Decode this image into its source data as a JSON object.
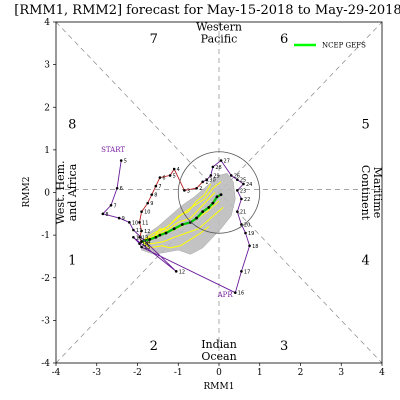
{
  "chart_data": {
    "type": "line",
    "title": "[RMM1, RMM2] forecast for May-15-2018 to May-29-2018",
    "xlabel": "RMM1",
    "ylabel": "RMM2",
    "xlim": [
      -4,
      4
    ],
    "ylim": [
      -4,
      4
    ],
    "xticks": [
      "-4",
      "-3",
      "-2",
      "-1",
      "0",
      "1",
      "2",
      "3",
      "4"
    ],
    "yticks": [
      "-4",
      "-3",
      "-2",
      "-1",
      "0",
      "1",
      "2",
      "3",
      "4"
    ],
    "phases": [
      {
        "label": "1",
        "x": -3.6,
        "y": -1.6
      },
      {
        "label": "2",
        "x": -1.6,
        "y": -3.6
      },
      {
        "label": "3",
        "x": 1.6,
        "y": -3.6
      },
      {
        "label": "4",
        "x": 3.6,
        "y": -1.6
      },
      {
        "label": "5",
        "x": 3.6,
        "y": 1.6
      },
      {
        "label": "6",
        "x": 1.6,
        "y": 3.6
      },
      {
        "label": "7",
        "x": -1.6,
        "y": 3.6
      },
      {
        "label": "8",
        "x": -3.6,
        "y": 1.6
      }
    ],
    "regions": [
      {
        "lines": [
          "Western",
          "Pacific"
        ],
        "x": 0,
        "y": 3.75,
        "rotate": 0
      },
      {
        "lines": [
          "Indian",
          "Ocean"
        ],
        "x": 0,
        "y": -3.7,
        "rotate": 0
      },
      {
        "lines": [
          "West. Hem.",
          "and Africa"
        ],
        "x": -3.75,
        "y": 0,
        "rotate": -90
      },
      {
        "lines": [
          "Maritime",
          "Continent"
        ],
        "x": 3.75,
        "y": 0,
        "rotate": 90
      }
    ],
    "annotations": [
      {
        "text": "START",
        "x": -2.6,
        "y": 0.95,
        "color": "#7b1fa2"
      },
      {
        "text": "APR",
        "x": 0.15,
        "y": -2.45,
        "color": "#7b1fa2"
      }
    ],
    "legend": {
      "position": "top-right",
      "entries": [
        {
          "name": "NCEP GEFS",
          "color": "#00ff00"
        }
      ]
    },
    "amplitude_circle_radius": 1,
    "observed": {
      "color": "#6a1b9a",
      "points": [
        {
          "day": "5",
          "x": -2.4,
          "y": 0.75
        },
        {
          "day": "6",
          "x": -2.5,
          "y": 0.1
        },
        {
          "day": "7",
          "x": -2.65,
          "y": -0.3
        },
        {
          "day": "8",
          "x": -2.85,
          "y": -0.5
        },
        {
          "day": "9",
          "x": -2.45,
          "y": -0.6
        },
        {
          "day": "10",
          "x": -2.2,
          "y": -0.7
        },
        {
          "day": "11",
          "x": -2.1,
          "y": -0.88
        },
        {
          "day": "12",
          "x": -1.05,
          "y": -1.85
        },
        {
          "day": "13",
          "x": -2.1,
          "y": -1.05
        },
        {
          "day": "14",
          "x": -1.95,
          "y": -1.2
        },
        {
          "day": "15",
          "x": -1.9,
          "y": -1.28
        },
        {
          "day": "16",
          "x": 0.4,
          "y": -2.35
        },
        {
          "day": "17",
          "x": 0.55,
          "y": -1.85
        },
        {
          "day": "18",
          "x": 0.75,
          "y": -1.25
        },
        {
          "day": "19",
          "x": 0.65,
          "y": -0.95
        },
        {
          "day": "20",
          "x": 0.55,
          "y": -0.75
        },
        {
          "day": "21",
          "x": 0.45,
          "y": -0.45
        },
        {
          "day": "22",
          "x": 0.55,
          "y": -0.15
        },
        {
          "day": "23",
          "x": 0.45,
          "y": 0.05
        },
        {
          "day": "24",
          "x": 0.6,
          "y": 0.2
        },
        {
          "day": "25",
          "x": 0.45,
          "y": 0.3
        },
        {
          "day": "26",
          "x": 0.3,
          "y": 0.4
        },
        {
          "day": "27",
          "x": 0.05,
          "y": 0.75
        },
        {
          "day": "28",
          "x": -0.15,
          "y": 0.6
        },
        {
          "day": "29",
          "x": -0.2,
          "y": 0.4
        },
        {
          "day": "30",
          "x": -0.3,
          "y": 0.3
        },
        {
          "day": "1",
          "x": -0.4,
          "y": 0.25
        },
        {
          "day": "2",
          "x": -0.55,
          "y": 0.1
        },
        {
          "day": "3",
          "x": -0.85,
          "y": 0.05
        },
        {
          "day": "4",
          "x": -1.1,
          "y": 0.55
        },
        {
          "day": "5",
          "x": -1.2,
          "y": 0.4
        },
        {
          "day": "6",
          "x": -1.45,
          "y": 0.35
        },
        {
          "day": "7",
          "x": -1.55,
          "y": 0.15
        },
        {
          "day": "8",
          "x": -1.65,
          "y": -0.05
        },
        {
          "day": "9",
          "x": -1.75,
          "y": -0.25
        },
        {
          "day": "10",
          "x": -1.9,
          "y": -0.45
        },
        {
          "day": "11",
          "x": -1.95,
          "y": -0.7
        },
        {
          "day": "12",
          "x": -1.9,
          "y": -0.9
        },
        {
          "day": "13",
          "x": -1.95,
          "y": -1.05
        },
        {
          "day": "14",
          "x": -1.9,
          "y": -1.15
        }
      ]
    },
    "forecast_mean": {
      "color": "#ff1493",
      "x": [
        -1.9,
        -1.7,
        -1.55,
        -1.45,
        -1.3,
        -1.1,
        -0.9,
        -0.7,
        -0.55,
        -0.4,
        -0.25,
        -0.15,
        -0.05,
        0.05
      ],
      "y": [
        -1.15,
        -1.1,
        -1.05,
        -1.0,
        -0.95,
        -0.85,
        -0.75,
        -0.7,
        -0.6,
        -0.45,
        -0.35,
        -0.25,
        -0.1,
        -0.05
      ]
    },
    "forecast_spread": {
      "color": "#bdbdbd",
      "polygon_x": [
        -1.9,
        -1.6,
        -1.3,
        -1.0,
        -0.7,
        -0.4,
        -0.2,
        0.05,
        0.3,
        0.4,
        0.35,
        0.2,
        0.0,
        -0.3,
        -0.6,
        -0.9,
        -1.2,
        -1.5,
        -1.8
      ],
      "polygon_y": [
        -1.35,
        -1.45,
        -1.4,
        -1.35,
        -1.45,
        -1.3,
        -1.1,
        -0.85,
        -0.55,
        -0.15,
        0.25,
        0.45,
        0.4,
        0.15,
        -0.1,
        -0.3,
        -0.55,
        -0.8,
        -1.0
      ]
    },
    "ensemble": {
      "color": "#ffff00",
      "members": [
        {
          "x": [
            -1.9,
            -1.6,
            -1.3,
            -1.0,
            -0.7,
            -0.5,
            -0.3,
            -0.1
          ],
          "y": [
            -1.15,
            -1.05,
            -0.9,
            -0.7,
            -0.6,
            -0.4,
            -0.2,
            0.0
          ]
        },
        {
          "x": [
            -1.9,
            -1.65,
            -1.35,
            -1.1,
            -0.8,
            -0.5,
            -0.2,
            0.1
          ],
          "y": [
            -1.15,
            -1.2,
            -1.15,
            -1.05,
            -0.95,
            -0.85,
            -0.6,
            -0.35
          ]
        },
        {
          "x": [
            -1.9,
            -1.55,
            -1.2,
            -0.9,
            -0.6,
            -0.35,
            -0.15,
            0.05
          ],
          "y": [
            -1.15,
            -1.0,
            -0.75,
            -0.5,
            -0.3,
            -0.15,
            0.1,
            0.25
          ]
        },
        {
          "x": [
            -1.9,
            -1.7,
            -1.4,
            -1.2,
            -0.95,
            -0.7,
            -0.45,
            -0.25
          ],
          "y": [
            -1.15,
            -1.3,
            -1.25,
            -1.3,
            -1.25,
            -1.1,
            -0.95,
            -0.8
          ]
        },
        {
          "x": [
            -1.9,
            -1.6,
            -1.25,
            -1.0,
            -0.75,
            -0.55,
            -0.35,
            -0.2
          ],
          "y": [
            -1.15,
            -0.95,
            -0.8,
            -0.55,
            -0.45,
            -0.2,
            -0.05,
            0.2
          ]
        },
        {
          "x": [
            -1.9,
            -1.65,
            -1.45,
            -1.15,
            -0.85,
            -0.6,
            -0.3,
            0.0
          ],
          "y": [
            -1.15,
            -1.1,
            -0.85,
            -0.9,
            -0.75,
            -0.65,
            -0.45,
            -0.2
          ]
        }
      ]
    }
  }
}
